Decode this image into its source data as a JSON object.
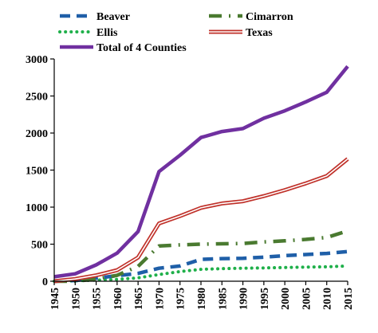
{
  "chart_data": {
    "type": "line",
    "title": "",
    "xlabel": "",
    "ylabel": "",
    "x": [
      1945,
      1950,
      1955,
      1960,
      1965,
      1970,
      1975,
      1980,
      1985,
      1990,
      1995,
      2000,
      2005,
      2010,
      2015
    ],
    "xlim": [
      1945,
      2015
    ],
    "ylim": [
      0,
      3000
    ],
    "yticks": [
      0,
      500,
      1000,
      1500,
      2000,
      2500,
      3000
    ],
    "xtick_labels": [
      "1945",
      "1950",
      "1955",
      "1960",
      "1965",
      "1970",
      "1975",
      "1980",
      "1985",
      "1990",
      "1995",
      "2000",
      "2005",
      "2010",
      "2015"
    ],
    "ytick_labels": [
      "0",
      "500",
      "1000",
      "1500",
      "2000",
      "2500",
      "3000"
    ],
    "grid": false,
    "legend_position": "top",
    "series": [
      {
        "name": "Beaver",
        "style": "dashed",
        "color": "#1f5fa8",
        "values": [
          0,
          10,
          40,
          75,
          105,
          175,
          205,
          295,
          305,
          310,
          325,
          345,
          360,
          375,
          400
        ]
      },
      {
        "name": "Cimarron",
        "style": "dash-dot",
        "color": "#4a7a30",
        "values": [
          0,
          0,
          30,
          80,
          200,
          475,
          490,
          500,
          505,
          510,
          530,
          545,
          565,
          590,
          680
        ]
      },
      {
        "name": "Ellis",
        "style": "dotted",
        "color": "#1fb04a",
        "values": [
          0,
          5,
          15,
          25,
          45,
          90,
          130,
          160,
          170,
          175,
          180,
          185,
          190,
          195,
          205
        ]
      },
      {
        "name": "Texas",
        "style": "double",
        "color": "#c0322b",
        "values": [
          0,
          30,
          80,
          150,
          320,
          780,
          880,
          990,
          1050,
          1080,
          1150,
          1230,
          1320,
          1420,
          1650
        ]
      },
      {
        "name": "Total of 4 Counties",
        "style": "solid",
        "color": "#7030a0",
        "values": [
          60,
          100,
          220,
          380,
          670,
          1480,
          1700,
          1940,
          2020,
          2060,
          2200,
          2300,
          2420,
          2550,
          2900
        ]
      }
    ]
  }
}
